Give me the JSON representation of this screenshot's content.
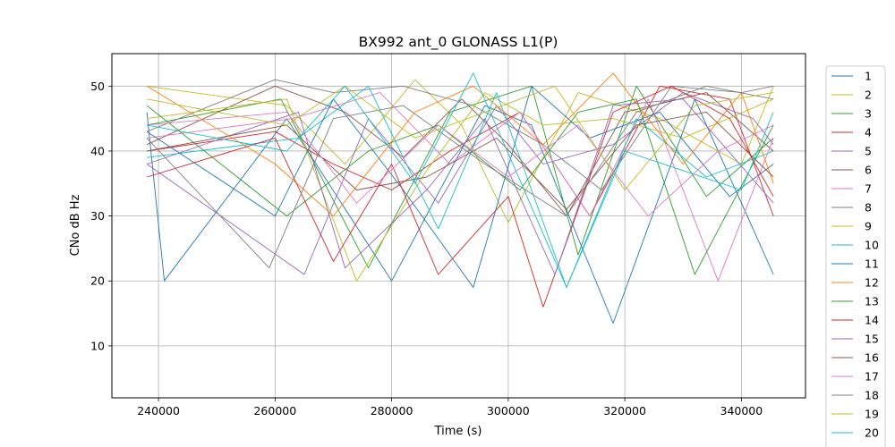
{
  "chart_data": {
    "type": "line",
    "title": "BX992 ant_0 GLONASS L1(P)",
    "xlabel": "Time (s)",
    "ylabel": "CNo dB Hz",
    "xlim": [
      232000,
      351000
    ],
    "ylim": [
      2,
      55
    ],
    "x_ticks": [
      240000,
      260000,
      280000,
      300000,
      320000,
      340000
    ],
    "y_ticks": [
      10,
      20,
      30,
      40,
      50
    ],
    "grid": true,
    "legend_position": "outside right",
    "colors": [
      "#1f77b4",
      "#bcbd22",
      "#2ca02c",
      "#d62728",
      "#9467bd",
      "#8c564b",
      "#e377c2",
      "#7f7f7f",
      "#bcbd22",
      "#17becf",
      "#1f77b4",
      "#ff7f0e",
      "#2ca02c",
      "#d62728",
      "#9467bd",
      "#8c564b",
      "#e377c2",
      "#7f7f7f",
      "#bcbd22",
      "#17becf"
    ],
    "series": [
      {
        "name": "1",
        "x": [
          238000,
          241000,
          262000,
          280000,
          296000,
          304000,
          318000,
          332000,
          345500
        ],
        "y": [
          46,
          20,
          45,
          20,
          47,
          44,
          13.5,
          48,
          21
        ]
      },
      {
        "name": "2",
        "x": [
          238000,
          262000,
          272000,
          284000,
          292000,
          300000,
          312000,
          326000,
          340000,
          345500
        ],
        "y": [
          50,
          47,
          38,
          51,
          44,
          29,
          49,
          45,
          38,
          50
        ]
      },
      {
        "name": "3",
        "x": [
          238000,
          261000,
          276000,
          290000,
          304000,
          312000,
          322000,
          334000,
          345500
        ],
        "y": [
          44,
          48,
          22,
          46,
          50,
          24,
          50,
          33,
          42
        ]
      },
      {
        "name": "4",
        "x": [
          238000,
          260000,
          270000,
          280000,
          290000,
          302000,
          314000,
          326000,
          338000,
          345500
        ],
        "y": [
          40,
          43,
          38,
          34,
          40,
          46,
          30,
          50,
          48,
          30
        ]
      },
      {
        "name": "5",
        "x": [
          238000,
          265000,
          276000,
          288000,
          298000,
          306000,
          318000,
          330000,
          342000,
          345500
        ],
        "y": [
          38,
          21,
          45,
          32,
          47,
          38,
          41,
          49,
          45,
          41
        ]
      },
      {
        "name": "6",
        "x": [
          238000,
          260000,
          272000,
          282000,
          292000,
          300000,
          310000,
          320000,
          334000,
          345500
        ],
        "y": [
          41,
          50,
          46,
          39,
          48,
          41,
          30,
          46,
          49,
          40
        ]
      },
      {
        "name": "7",
        "x": [
          238000,
          263000,
          278000,
          290000,
          302000,
          314000,
          324000,
          336000,
          345500
        ],
        "y": [
          42,
          45,
          49,
          38,
          46,
          30,
          48,
          20,
          42
        ]
      },
      {
        "name": "8",
        "x": [
          238000,
          260000,
          270000,
          282000,
          294000,
          306000,
          316000,
          328000,
          340000,
          345500
        ],
        "y": [
          43,
          51,
          49,
          50,
          47,
          41,
          34,
          50,
          49,
          50
        ]
      },
      {
        "name": "9",
        "x": [
          238000,
          262000,
          274000,
          286000,
          296000,
          306000,
          318000,
          330000,
          345500
        ],
        "y": [
          45,
          48,
          20,
          37,
          49,
          44,
          45,
          42,
          48
        ]
      },
      {
        "name": "10",
        "x": [
          238000,
          264000,
          276000,
          288000,
          298000,
          310000,
          322000,
          334000,
          345500
        ],
        "y": [
          39,
          42,
          50,
          28,
          49,
          19,
          45,
          36,
          40
        ]
      },
      {
        "name": "11",
        "x": [
          238000,
          260000,
          270000,
          282000,
          294000,
          304000,
          314000,
          326000,
          338000,
          345500
        ],
        "y": [
          43,
          30,
          48,
          34,
          19,
          50,
          42,
          46,
          33,
          38
        ]
      },
      {
        "name": "12",
        "x": [
          238000,
          260000,
          270000,
          284000,
          294000,
          306000,
          318000,
          330000,
          340000,
          345500
        ],
        "y": [
          50,
          38,
          30,
          46,
          50,
          41,
          52,
          38,
          49,
          35
        ]
      },
      {
        "name": "13",
        "x": [
          238000,
          262000,
          276000,
          288000,
          302000,
          312000,
          322000,
          332000,
          345500
        ],
        "y": [
          47,
          30,
          40,
          44,
          34,
          46,
          48,
          21,
          44
        ]
      },
      {
        "name": "14",
        "x": [
          238000,
          260000,
          270000,
          280000,
          288000,
          300000,
          306000,
          318000,
          328000,
          338000,
          345500
        ],
        "y": [
          36,
          42,
          23,
          38,
          21,
          33,
          16,
          46,
          50,
          45,
          33
        ]
      },
      {
        "name": "15",
        "x": [
          238000,
          264000,
          272000,
          286000,
          296000,
          308000,
          318000,
          330000,
          345500
        ],
        "y": [
          38,
          46,
          22,
          34,
          45,
          21,
          47,
          48,
          32
        ]
      },
      {
        "name": "16",
        "x": [
          238000,
          262000,
          274000,
          286000,
          298000,
          310000,
          322000,
          334000,
          345500
        ],
        "y": [
          40,
          44,
          34,
          36,
          42,
          31,
          44,
          46,
          36
        ]
      },
      {
        "name": "17",
        "x": [
          238000,
          262000,
          274000,
          288000,
          300000,
          312000,
          324000,
          336000,
          345500
        ],
        "y": [
          44,
          46,
          32,
          44,
          36,
          44,
          30,
          40,
          44
        ]
      },
      {
        "name": "18",
        "x": [
          238000,
          259000,
          270000,
          282000,
          296000,
          310000,
          322000,
          334000,
          345500
        ],
        "y": [
          42,
          22,
          45,
          47,
          38,
          30,
          46,
          50,
          48
        ]
      },
      {
        "name": "19",
        "x": [
          238000,
          262000,
          272000,
          284000,
          296000,
          308000,
          320000,
          332000,
          345500
        ],
        "y": [
          48,
          44,
          50,
          42,
          46,
          50,
          34,
          47,
          49
        ]
      },
      {
        "name": "20",
        "x": [
          238000,
          262000,
          272000,
          284000,
          294000,
          310000,
          320000,
          330000,
          340000,
          345500
        ],
        "y": [
          44,
          40,
          50,
          35,
          52,
          19,
          40,
          37,
          34,
          46
        ]
      }
    ]
  }
}
